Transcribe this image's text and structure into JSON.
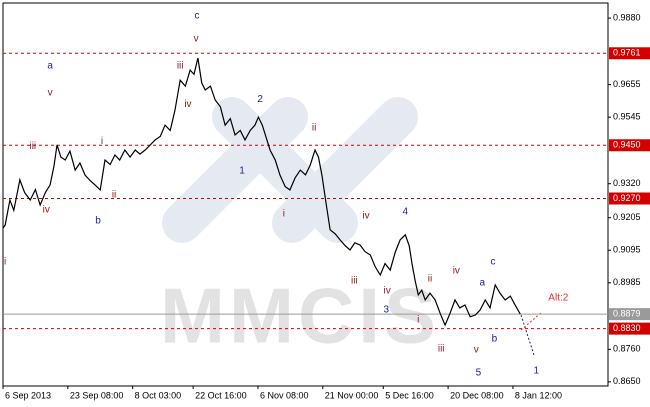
{
  "chart_data": {
    "type": "line",
    "watermark": "MMCIS",
    "xlim": [
      0,
      140
    ],
    "ylim": [
      0.8636,
      0.9931
    ],
    "xticks": [
      {
        "value": 0,
        "label": "6 Sep 2013"
      },
      {
        "value": 15,
        "label": "23 Sep 08:00"
      },
      {
        "value": 30,
        "label": "8 Oct 03:00"
      },
      {
        "value": 44,
        "label": "22 Oct 16:00"
      },
      {
        "value": 59,
        "label": "6 Nov 08:00"
      },
      {
        "value": 74,
        "label": "21 Nov 00:00"
      },
      {
        "value": 88,
        "label": "5 Dec 16:00"
      },
      {
        "value": 103,
        "label": "20 Dec 08:00"
      },
      {
        "value": 118,
        "label": "8 Jan 12:00"
      }
    ],
    "yticks": [
      {
        "value": 0.988,
        "label": "0.9880"
      },
      0.9655,
      0.9545,
      {
        "value": 0.932,
        "label": "0.9320"
      },
      0.9205,
      0.9095,
      0.8985,
      {
        "value": 0.876,
        "label": "0.8760"
      },
      {
        "value": 0.865,
        "label": "0.8650"
      }
    ],
    "levels": [
      0.9761,
      {
        "value": 0.945,
        "label": "0.9450"
      },
      {
        "value": 0.927,
        "label": "0.9270"
      },
      {
        "value": 0.883,
        "label": "0.8830"
      }
    ],
    "level_color": "#d40000",
    "current": 0.8879,
    "current_color": "#9a9a9a",
    "series": [
      {
        "color": "#000000",
        "x": [
          0,
          0.5,
          1.6,
          2.5,
          3.9,
          5,
          6.3,
          7.5,
          8.6,
          9.8,
          10.9,
          11.8,
          12.5,
          13.4,
          14.4,
          15.5,
          16.7,
          17.8,
          19.0,
          20.2,
          21.3,
          22.5,
          23.6,
          24.8,
          25.9,
          27.0,
          28.2,
          29.4,
          30.6,
          31.7,
          32.9,
          34.0,
          35.2,
          36.4,
          37.5,
          38.7,
          39.8,
          41.0,
          42.2,
          43.3,
          44.2,
          45.1,
          46.0,
          46.8,
          48.0,
          49.1,
          50.3,
          51.4,
          52.6,
          53.7,
          54.9,
          56.0,
          57.2,
          58.3,
          59.1,
          60.0,
          61.8,
          63.0,
          64.1,
          65.3,
          66.4,
          67.6,
          68.8,
          70.0,
          71.1,
          72.2,
          73.0,
          73.8,
          74.8,
          75.7,
          76.9,
          78.0,
          79.2,
          80.3,
          81.4,
          82.6,
          83.8,
          85.0,
          86.1,
          87.3,
          88.4,
          89.6,
          90.8,
          91.9,
          93.1,
          94.0,
          94.7,
          95.4,
          96.1,
          96.9,
          97.7,
          98.8,
          100.0,
          101.2,
          102.3,
          103.4,
          104.6,
          105.7,
          106.9,
          108.1,
          109.3,
          110.4,
          111.6,
          112.7,
          113.9,
          115.0,
          116.2,
          117.4,
          118.5,
          119.7
        ],
        "values": [
          0.917,
          0.918,
          0.9265,
          0.923,
          0.9333,
          0.929,
          0.9265,
          0.93,
          0.9248,
          0.929,
          0.9316,
          0.938,
          0.9451,
          0.941,
          0.94,
          0.943,
          0.9366,
          0.939,
          0.9349,
          0.933,
          0.9316,
          0.9299,
          0.94,
          0.9385,
          0.9417,
          0.94,
          0.9434,
          0.941,
          0.9434,
          0.942,
          0.9434,
          0.945,
          0.9468,
          0.948,
          0.9518,
          0.95,
          0.9569,
          0.967,
          0.965,
          0.9704,
          0.969,
          0.9745,
          0.966,
          0.9637,
          0.965,
          0.9603,
          0.958,
          0.9518,
          0.954,
          0.9485,
          0.95,
          0.9468,
          0.95,
          0.9518,
          0.9545,
          0.9518,
          0.9434,
          0.94,
          0.9349,
          0.931,
          0.9299,
          0.934,
          0.9366,
          0.935,
          0.9383,
          0.9434,
          0.941,
          0.9349,
          0.925,
          0.9164,
          0.915,
          0.913,
          0.911,
          0.9096,
          0.912,
          0.9113,
          0.909,
          0.9079,
          0.904,
          0.9011,
          0.905,
          0.9028,
          0.909,
          0.913,
          0.9147,
          0.911,
          0.9045,
          0.899,
          0.8944,
          0.896,
          0.8927,
          0.895,
          0.8927,
          0.888,
          0.8842,
          0.888,
          0.8927,
          0.89,
          0.891,
          0.887,
          0.8876,
          0.8893,
          0.8927,
          0.89,
          0.8978,
          0.895,
          0.8927,
          0.894,
          0.891,
          0.8879
        ]
      }
    ],
    "annotations": [
      {
        "color": "#1c1ca0",
        "labels": [
          {
            "text": "c",
            "x": 44.9,
            "y": 0.9887
          },
          {
            "text": "a",
            "x": 10.9,
            "y": 0.9718
          },
          {
            "text": "2",
            "x": 59.5,
            "y": 0.9606
          },
          {
            "text": "1",
            "x": 55.3,
            "y": 0.9363
          },
          {
            "text": "b",
            "x": 22.0,
            "y": 0.9194
          },
          {
            "text": "4",
            "x": 93.1,
            "y": 0.9224
          },
          {
            "text": "3",
            "x": 88.7,
            "y": 0.8893
          },
          {
            "text": "c",
            "x": 113.4,
            "y": 0.9055
          },
          {
            "text": "a",
            "x": 110.9,
            "y": 0.8984
          },
          {
            "text": "b",
            "x": 113.7,
            "y": 0.8795
          },
          {
            "text": "5",
            "x": 110.0,
            "y": 0.868
          },
          {
            "text": "1",
            "x": 123.4,
            "y": 0.8687
          }
        ]
      },
      {
        "color": "#8b1a1a",
        "labels": [
          {
            "text": "v",
            "x": 44.7,
            "y": 0.9809
          },
          {
            "text": "v",
            "x": 10.9,
            "y": 0.9627
          },
          {
            "text": "iii",
            "x": 41.0,
            "y": 0.9718
          },
          {
            "text": "iv",
            "x": 42.8,
            "y": 0.9589
          },
          {
            "text": "i",
            "x": 22.9,
            "y": 0.9464
          },
          {
            "text": "iii",
            "x": 6.9,
            "y": 0.9447
          },
          {
            "text": "ii",
            "x": 25.7,
            "y": 0.9282
          },
          {
            "text": "iv",
            "x": 10.0,
            "y": 0.9231
          },
          {
            "text": "i",
            "x": 0.5,
            "y": 0.9055
          },
          {
            "text": "ii",
            "x": 72.0,
            "y": 0.9508
          },
          {
            "text": "i",
            "x": 65.0,
            "y": 0.9218
          },
          {
            "text": "iv",
            "x": 84.0,
            "y": 0.9211
          },
          {
            "text": "iii",
            "x": 81.3,
            "y": 0.8991
          },
          {
            "text": "iv",
            "x": 88.9,
            "y": 0.8957
          },
          {
            "text": "ii",
            "x": 98.8,
            "y": 0.8998
          },
          {
            "text": "iv",
            "x": 104.9,
            "y": 0.9025
          },
          {
            "text": "i",
            "x": 96.1,
            "y": 0.8859
          },
          {
            "text": "iii",
            "x": 101.4,
            "y": 0.8761
          },
          {
            "text": "v",
            "x": 109.5,
            "y": 0.8758
          }
        ]
      },
      {
        "color": "#e03030",
        "labels": [
          {
            "text": "Alt:2",
            "x": 128.5,
            "y": 0.8934
          }
        ]
      }
    ]
  }
}
